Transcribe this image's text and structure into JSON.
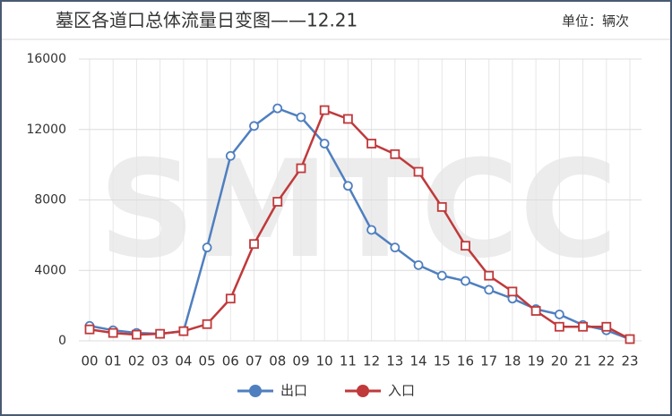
{
  "chart_data": {
    "type": "line",
    "title": "墓区各道口总体流量日变图——12.21",
    "unit_label": "单位：辆次",
    "watermark": "SMTCC",
    "categories": [
      "00",
      "01",
      "02",
      "03",
      "04",
      "05",
      "06",
      "07",
      "08",
      "09",
      "10",
      "11",
      "12",
      "13",
      "14",
      "15",
      "16",
      "17",
      "18",
      "19",
      "20",
      "21",
      "22",
      "23"
    ],
    "series": [
      {
        "name": "出口",
        "color": "#4f7fbf",
        "marker": "circle",
        "values": [
          850,
          600,
          450,
          400,
          550,
          5300,
          10500,
          12200,
          13200,
          12700,
          11200,
          8800,
          6300,
          5300,
          4300,
          3700,
          3400,
          2900,
          2400,
          1800,
          1500,
          900,
          600,
          100
        ]
      },
      {
        "name": "入口",
        "color": "#c0393b",
        "marker": "square",
        "values": [
          650,
          450,
          350,
          400,
          550,
          950,
          2400,
          5500,
          7900,
          9800,
          13100,
          12600,
          11200,
          10600,
          9600,
          7600,
          5400,
          3700,
          2800,
          1700,
          800,
          800,
          800,
          100
        ]
      }
    ],
    "ylim": [
      0,
      16000
    ],
    "yticks": [
      0,
      4000,
      8000,
      12000,
      16000
    ],
    "grid": true,
    "legend": "bottom"
  }
}
